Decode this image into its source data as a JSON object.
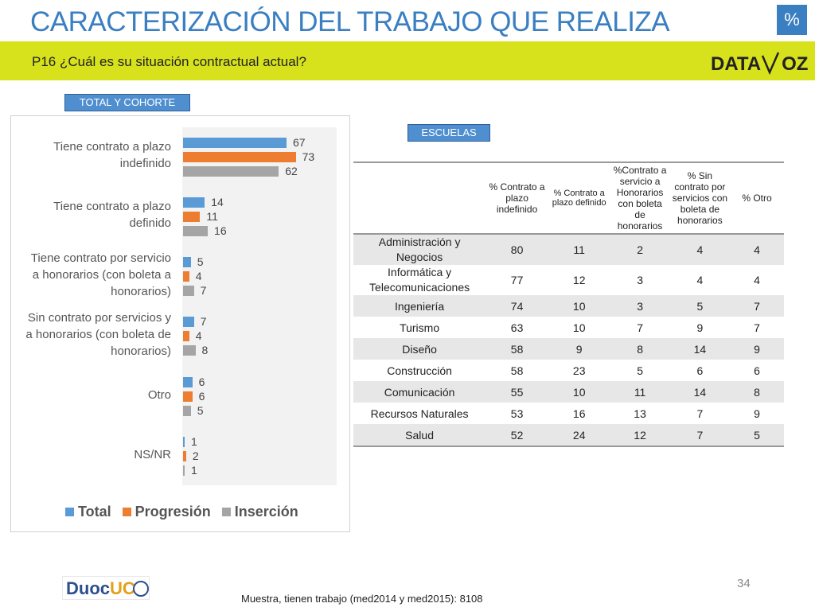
{
  "header": {
    "title": "CARACTERIZACIÓN DEL TRABAJO QUE REALIZA",
    "badge": "%",
    "question": "P16 ¿Cuál es su situación contractual actual?",
    "logo_left": "DATA",
    "logo_right": "OZ"
  },
  "tags": {
    "total_cohorte": "TOTAL Y COHORTE",
    "escuelas": "ESCUELAS"
  },
  "colors": {
    "total": "#5b9bd5",
    "progresion": "#ed7d31",
    "insercion": "#a5a5a5",
    "accent": "#3a7fc1",
    "band": "#d7e21c"
  },
  "chart_data": {
    "type": "bar",
    "orientation": "horizontal",
    "categories": [
      [
        "Tiene contrato a plazo",
        "indefinido"
      ],
      [
        "Tiene contrato a plazo",
        "definido"
      ],
      [
        "Tiene contrato por servicio",
        "a honorarios (con boleta a",
        "honorarios)"
      ],
      [
        "Sin contrato por servicios y",
        "a honorarios (con boleta de",
        "honorarios)"
      ],
      [
        "Otro"
      ],
      [
        "NS/NR"
      ]
    ],
    "series": [
      {
        "name": "Total",
        "values": [
          67,
          14,
          5,
          7,
          6,
          1
        ]
      },
      {
        "name": "Progresión",
        "values": [
          73,
          11,
          4,
          4,
          6,
          2
        ]
      },
      {
        "name": "Inserción",
        "values": [
          62,
          16,
          7,
          8,
          5,
          1
        ]
      }
    ],
    "xlim": [
      0,
      100
    ],
    "legend_position": "bottom",
    "grid": false
  },
  "table": {
    "headers": [
      "",
      "% Contrato a plazo indefinido",
      "% Contrato a plazo definido",
      "%Contrato a servicio a Honorarios con boleta de honorarios",
      "% Sin contrato por servicios con boleta de honorarios",
      "% Otro"
    ],
    "rows": [
      [
        "Administración y Negocios",
        "80",
        "11",
        "2",
        "4",
        "4"
      ],
      [
        "Informática y Telecomunicaciones",
        "77",
        "12",
        "3",
        "4",
        "4"
      ],
      [
        "Ingeniería",
        "74",
        "10",
        "3",
        "5",
        "7"
      ],
      [
        "Turismo",
        "63",
        "10",
        "7",
        "9",
        "7"
      ],
      [
        "Diseño",
        "58",
        "9",
        "8",
        "14",
        "9"
      ],
      [
        "Construcción",
        "58",
        "23",
        "5",
        "6",
        "6"
      ],
      [
        "Comunicación",
        "55",
        "10",
        "11",
        "14",
        "8"
      ],
      [
        "Recursos Naturales",
        "53",
        "16",
        "13",
        "7",
        "9"
      ],
      [
        "Salud",
        "52",
        "24",
        "12",
        "7",
        "5"
      ]
    ]
  },
  "footer": {
    "logo_duoc": "Duoc",
    "logo_uc": "UC",
    "page_number": "34",
    "sample": "Muestra, tienen trabajo (med2014 y med2015): 8108"
  }
}
